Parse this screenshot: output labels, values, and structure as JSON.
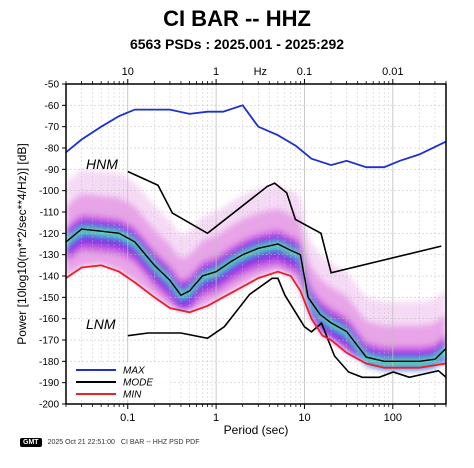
{
  "title": "CI BAR -- HHZ",
  "subtitle": "6563 PSDs : 2025.001 - 2025:292",
  "footer": {
    "logo": "GMT",
    "timestamp": "2025 Oct 21 22:51:00",
    "caption": "CI BAR -- HHZ PSD PDF"
  },
  "chart_data": {
    "type": "line",
    "title": "CI BAR -- HHZ",
    "subtitle": "6563 PSDs : 2025.001 - 2025:292",
    "xlabel": "Period (sec)",
    "ylabel": "Power [10log10(m**2/sec**4/Hz)] [dB]",
    "xscale": "log",
    "xlim": [
      0.02,
      400
    ],
    "ylim": [
      -200,
      -50
    ],
    "x_ticks": [
      0.1,
      1,
      10,
      100
    ],
    "x_tick_labels": [
      "0.1",
      "1",
      "10",
      "100"
    ],
    "y_ticks": [
      -200,
      -190,
      -180,
      -170,
      -160,
      -150,
      -140,
      -130,
      -120,
      -110,
      -100,
      -90,
      -80,
      -70,
      -60,
      -50
    ],
    "y_tick_labels": [
      "-200",
      "-190",
      "-180",
      "-170",
      "-160",
      "-150",
      "-140",
      "-130",
      "-120",
      "-110",
      "-100",
      "-90",
      "-80",
      "-70",
      "-60",
      "-50"
    ],
    "top_axis": {
      "label": "Hz",
      "ticks": [
        10,
        1,
        0.1,
        0.01
      ],
      "tick_labels": [
        "10",
        "1",
        "0.1",
        "0.01"
      ]
    },
    "grid": true,
    "legend": {
      "placement": "bottom-left",
      "entries": [
        "MAX",
        "MODE",
        "MIN"
      ]
    },
    "annotations": [
      "HNM",
      "LNM"
    ],
    "series": [
      {
        "name": "MAX",
        "color": "#1f2fd0",
        "x": [
          0.02,
          0.03,
          0.05,
          0.08,
          0.12,
          0.2,
          0.3,
          0.5,
          0.8,
          1.2,
          2,
          3,
          5,
          8,
          12,
          20,
          30,
          50,
          80,
          120,
          200,
          400
        ],
        "y": [
          -82,
          -76,
          -70,
          -65,
          -62,
          -62,
          -62,
          -64,
          -63,
          -63,
          -60,
          -70,
          -74,
          -79,
          -85,
          -88,
          -86,
          -89,
          -89,
          -86,
          -83,
          -77
        ]
      },
      {
        "name": "MODE",
        "color": "#000000",
        "x": [
          0.02,
          0.03,
          0.05,
          0.08,
          0.12,
          0.2,
          0.3,
          0.4,
          0.5,
          0.7,
          1,
          1.5,
          2,
          3,
          5,
          7,
          9,
          11,
          15,
          20,
          30,
          50,
          80,
          120,
          200,
          300,
          400
        ],
        "y": [
          -124,
          -118,
          -119,
          -120,
          -124,
          -135,
          -142,
          -149,
          -147,
          -140,
          -138,
          -133,
          -130,
          -127,
          -125,
          -128,
          -130,
          -150,
          -158,
          -162,
          -166,
          -178,
          -180,
          -180,
          -180,
          -179,
          -174
        ]
      },
      {
        "name": "MIN",
        "color": "#e8202a",
        "x": [
          0.02,
          0.03,
          0.05,
          0.08,
          0.12,
          0.2,
          0.3,
          0.5,
          0.8,
          1.2,
          2,
          3,
          5,
          7,
          9,
          12,
          16,
          20,
          30,
          50,
          80,
          120,
          200,
          400
        ],
        "y": [
          -141,
          -136,
          -135,
          -138,
          -143,
          -150,
          -155,
          -157,
          -154,
          -150,
          -145,
          -141,
          -138,
          -140,
          -147,
          -160,
          -168,
          -170,
          -176,
          -181,
          -183,
          -183,
          -183,
          -181
        ]
      }
    ],
    "reference_models": [
      {
        "name": "HNM",
        "color": "#000000",
        "x": [
          0.1,
          0.22,
          0.32,
          0.8,
          3.8,
          4.6,
          6.3,
          7.9,
          15.4,
          20,
          354
        ],
        "y": [
          -91,
          -97.5,
          -110.5,
          -120,
          -98,
          -96.5,
          -101,
          -113.5,
          -120,
          -138.5,
          -126
        ]
      },
      {
        "name": "LNM",
        "color": "#000000",
        "x": [
          0.1,
          0.17,
          0.4,
          0.8,
          1.24,
          2.4,
          4.3,
          5,
          6,
          10,
          12,
          15.6,
          21.9,
          31.6,
          45,
          70,
          101,
          154,
          328,
          400
        ],
        "y": [
          -168,
          -166.7,
          -166.7,
          -169.2,
          -163.7,
          -148.6,
          -141.1,
          -141.1,
          -149.0,
          -163.8,
          -166.2,
          -162.1,
          -177.5,
          -185.0,
          -187.5,
          -187.5,
          -185.0,
          -187.5,
          -184.4,
          -187.5
        ]
      }
    ],
    "pdf_density": {
      "colormap": [
        "#ffffff",
        "#f4d6f4",
        "#e79ae8",
        "#c95be0",
        "#8a2be2",
        "#3f3fe8",
        "#2aa6e8",
        "#24d2c3",
        "#9be84a"
      ],
      "description": "probability density of PSD values"
    }
  }
}
